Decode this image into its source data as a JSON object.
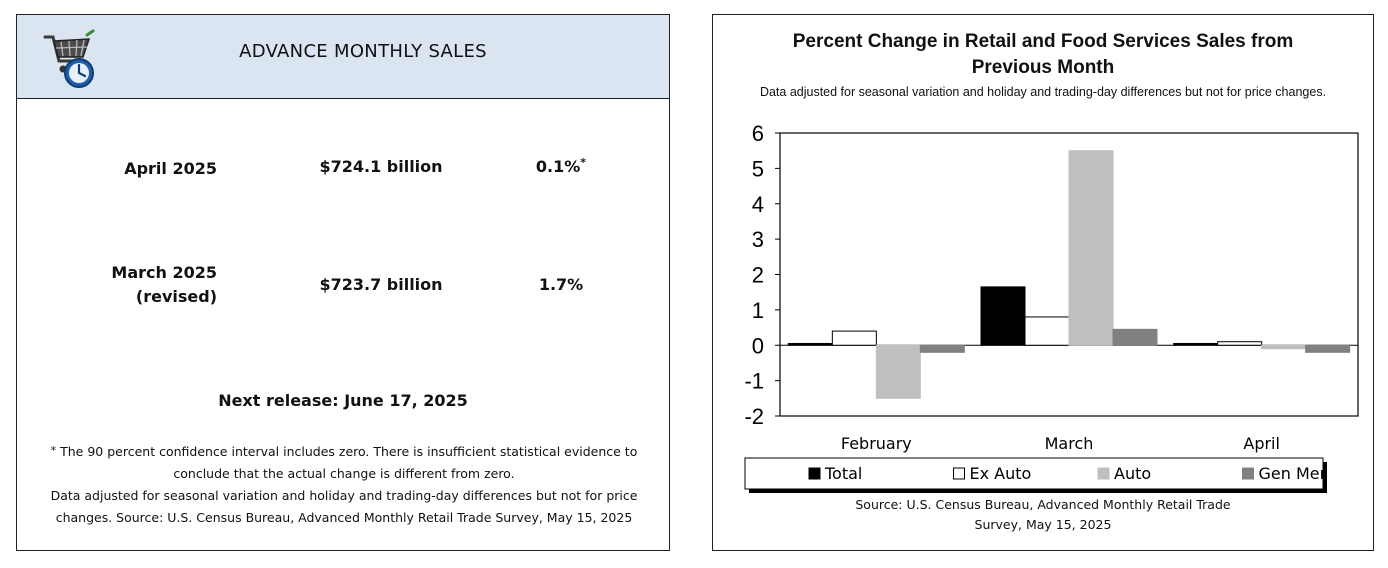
{
  "left_panel": {
    "title": "ADVANCE MONTHLY SALES",
    "rows": [
      {
        "period": "April 2025",
        "period_note": "",
        "sales": "$724.1 billion",
        "pct": "0.1%",
        "pct_mark": "*"
      },
      {
        "period": "March 2025",
        "period_note": "(revised)",
        "sales": "$723.7 billion",
        "pct": "1.7%",
        "pct_mark": ""
      }
    ],
    "next_release": "Next release: June 17, 2025",
    "footnote_asterisk": "*",
    "footnote_line1": "The 90 percent confidence interval includes zero. There is insufficient statistical evidence to conclude that the actual change is different from zero.",
    "footnote_line2": "Data adjusted for seasonal variation and holiday and trading-day differences but not for price changes. Source: U.S. Census Bureau, Advanced Monthly Retail Trade Survey, May 15, 2025"
  },
  "right_panel": {
    "source": "Source: U.S. Census Bureau, Advanced Monthly Retail Trade Survey, May 15, 2025"
  },
  "chart_data": {
    "type": "bar",
    "title": "Percent Change in Retail and Food Services Sales from Previous Month",
    "subtitle": "Data adjusted for seasonal variation and holiday and trading-day differences but not for price changes.",
    "categories": [
      "February",
      "March",
      "April"
    ],
    "series": [
      {
        "name": "Total",
        "values": [
          0.05,
          1.65,
          0.05
        ],
        "color": "#000000"
      },
      {
        "name": "Ex Auto",
        "values": [
          0.4,
          0.8,
          0.1
        ],
        "color": "#ffffff"
      },
      {
        "name": "Auto",
        "values": [
          -1.5,
          5.5,
          -0.1
        ],
        "color": "#bfbfbf"
      },
      {
        "name": "Gen Mer",
        "values": [
          -0.2,
          0.45,
          -0.2
        ],
        "color": "#808080"
      }
    ],
    "yticks": [
      6,
      5,
      4,
      3,
      2,
      1,
      0,
      -1,
      -2
    ],
    "ylim": [
      -2,
      6
    ],
    "xlabel": "",
    "ylabel": "",
    "legend_position": "bottom"
  }
}
